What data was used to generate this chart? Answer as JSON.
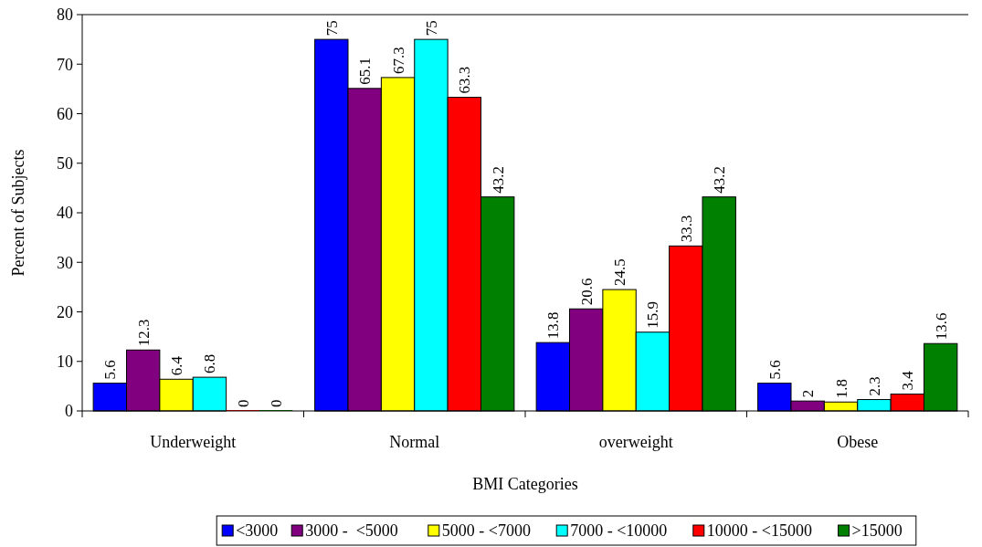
{
  "chart_data": {
    "type": "bar",
    "xlabel": "BMI Categories",
    "ylabel": "Percent of Subjects",
    "categories": [
      "Underweight",
      "Normal",
      "overweight",
      "Obese"
    ],
    "series": [
      {
        "name": "<3000",
        "color": "#0000ff",
        "values": [
          5.6,
          75,
          13.8,
          5.6
        ]
      },
      {
        "name": "3000 -  <5000",
        "color": "#800080",
        "values": [
          12.3,
          65.1,
          20.6,
          2
        ]
      },
      {
        "name": "5000 - <7000",
        "color": "#ffff00",
        "values": [
          6.4,
          67.3,
          24.5,
          1.8
        ]
      },
      {
        "name": "7000 - <10000",
        "color": "#00ffff",
        "values": [
          6.8,
          75,
          15.9,
          2.3
        ]
      },
      {
        "name": "10000 - <15000",
        "color": "#ff0000",
        "values": [
          0,
          63.3,
          33.3,
          3.4
        ]
      },
      {
        "name": ">15000",
        "color": "#008000",
        "values": [
          0,
          43.2,
          43.2,
          13.6
        ]
      }
    ],
    "ylim": [
      0,
      80
    ],
    "yticks": [
      0,
      10,
      20,
      30,
      40,
      50,
      60,
      70,
      80
    ],
    "data_labels": true,
    "legend": "bottom",
    "grid": false
  }
}
